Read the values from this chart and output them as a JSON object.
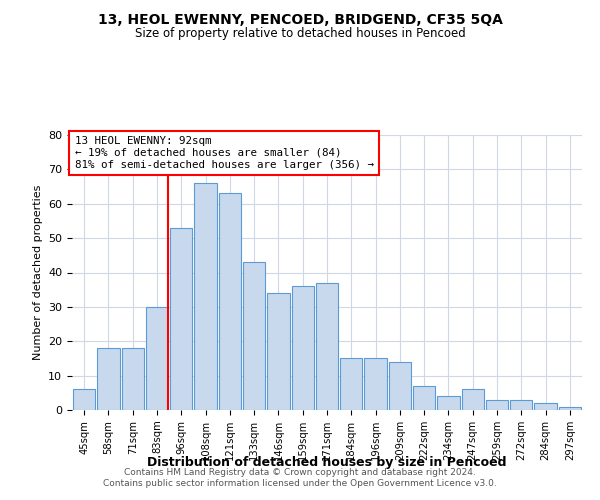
{
  "title": "13, HEOL EWENNY, PENCOED, BRIDGEND, CF35 5QA",
  "subtitle": "Size of property relative to detached houses in Pencoed",
  "xlabel": "Distribution of detached houses by size in Pencoed",
  "ylabel": "Number of detached properties",
  "categories": [
    "45sqm",
    "58sqm",
    "71sqm",
    "83sqm",
    "96sqm",
    "108sqm",
    "121sqm",
    "133sqm",
    "146sqm",
    "159sqm",
    "171sqm",
    "184sqm",
    "196sqm",
    "209sqm",
    "222sqm",
    "234sqm",
    "247sqm",
    "259sqm",
    "272sqm",
    "284sqm",
    "297sqm"
  ],
  "values": [
    6,
    18,
    18,
    30,
    53,
    66,
    63,
    43,
    34,
    36,
    37,
    15,
    15,
    14,
    7,
    4,
    6,
    3,
    3,
    2,
    1
  ],
  "bar_color": "#c9d9ed",
  "bar_edge_color": "#5b9bd5",
  "annotation_line_label": "13 HEOL EWENNY: 92sqm",
  "annotation_text1": "← 19% of detached houses are smaller (84)",
  "annotation_text2": "81% of semi-detached houses are larger (356) →",
  "annotation_box_color": "white",
  "annotation_box_edge_color": "red",
  "vline_color": "red",
  "vline_x_index": 3,
  "ylim": [
    0,
    80
  ],
  "yticks": [
    0,
    10,
    20,
    30,
    40,
    50,
    60,
    70,
    80
  ],
  "footnote1": "Contains HM Land Registry data © Crown copyright and database right 2024.",
  "footnote2": "Contains public sector information licensed under the Open Government Licence v3.0.",
  "background_color": "white",
  "grid_color": "#d0d8e8"
}
